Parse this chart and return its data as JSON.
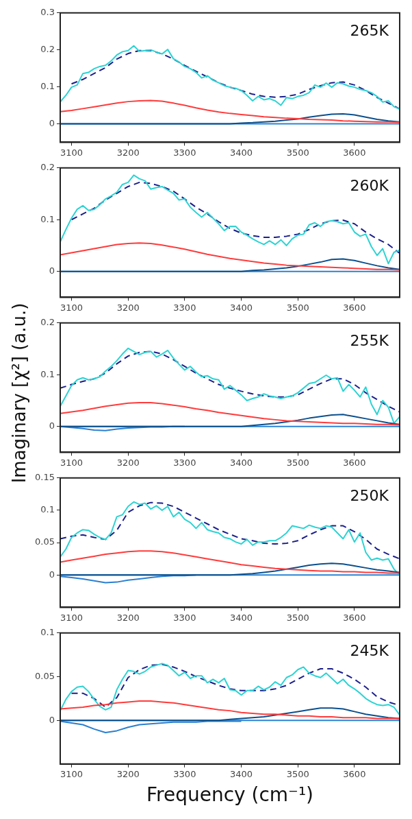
{
  "chart_data": [
    {
      "type": "line",
      "annotations": [
        "265K"
      ],
      "x": [
        3080,
        3100,
        3120,
        3140,
        3160,
        3180,
        3200,
        3220,
        3240,
        3260,
        3280,
        3300,
        3320,
        3340,
        3360,
        3380,
        3400,
        3420,
        3440,
        3460,
        3480,
        3500,
        3520,
        3540,
        3560,
        3580,
        3600,
        3620,
        3640,
        3660,
        3680
      ],
      "xlim": [
        3080,
        3680
      ],
      "xticks": [
        3100,
        3200,
        3300,
        3400,
        3500,
        3600
      ],
      "ylim": [
        -0.05,
        0.3
      ],
      "yticks": [
        0,
        0.1,
        0.2,
        0.3
      ],
      "marker": "none",
      "ref_lines": [
        {
          "axis": "y",
          "value": 0,
          "color": "#2a84d6"
        }
      ],
      "series": [
        {
          "color": "#ff3b3b",
          "values": [
            0.033,
            0.036,
            0.041,
            0.046,
            0.051,
            0.056,
            0.06,
            0.062,
            0.063,
            0.061,
            0.056,
            0.05,
            0.043,
            0.037,
            0.032,
            0.028,
            0.025,
            0.022,
            0.019,
            0.017,
            0.015,
            0.014,
            0.012,
            0.011,
            0.01,
            0.008,
            0.007,
            0.006,
            0.005,
            0.005,
            0.004
          ]
        },
        {
          "color": "#0b4f8c",
          "values": [
            0,
            0,
            0,
            0,
            0,
            0,
            0,
            0,
            0,
            0,
            0,
            0,
            0,
            0,
            0,
            0,
            0.002,
            0.003,
            0.005,
            0.007,
            0.01,
            0.013,
            0.018,
            0.022,
            0.026,
            0.027,
            0.024,
            0.018,
            0.012,
            0.008,
            0.005
          ]
        },
        {
          "color": "#2cd3d3",
          "x": [
            3080,
            3090,
            3100,
            3110,
            3120,
            3130,
            3140,
            3150,
            3160,
            3170,
            3180,
            3190,
            3200,
            3210,
            3220,
            3230,
            3240,
            3250,
            3260,
            3270,
            3280,
            3290,
            3300,
            3310,
            3320,
            3330,
            3340,
            3350,
            3360,
            3370,
            3380,
            3390,
            3400,
            3410,
            3420,
            3430,
            3440,
            3450,
            3460,
            3470,
            3480,
            3490,
            3500,
            3510,
            3520,
            3530,
            3540,
            3550,
            3560,
            3570,
            3580,
            3590,
            3600,
            3610,
            3620,
            3630,
            3640,
            3650,
            3660,
            3670,
            3680
          ],
          "values": [
            0.059,
            0.077,
            0.099,
            0.105,
            0.136,
            0.139,
            0.149,
            0.155,
            0.158,
            0.17,
            0.186,
            0.195,
            0.198,
            0.211,
            0.196,
            0.198,
            0.2,
            0.194,
            0.189,
            0.201,
            0.176,
            0.167,
            0.155,
            0.149,
            0.139,
            0.124,
            0.13,
            0.118,
            0.111,
            0.103,
            0.099,
            0.096,
            0.09,
            0.077,
            0.062,
            0.074,
            0.065,
            0.068,
            0.062,
            0.05,
            0.071,
            0.068,
            0.074,
            0.077,
            0.084,
            0.105,
            0.099,
            0.11,
            0.099,
            0.111,
            0.108,
            0.102,
            0.099,
            0.093,
            0.09,
            0.084,
            0.074,
            0.059,
            0.062,
            0.046,
            0.04
          ]
        },
        {
          "color": "#1b1f8a",
          "line_style": "dashed",
          "values": [
            null,
            0.108,
            0.12,
            0.136,
            0.152,
            0.175,
            0.19,
            0.198,
            0.198,
            0.189,
            0.175,
            0.158,
            0.142,
            0.127,
            0.111,
            0.099,
            0.09,
            0.08,
            0.074,
            0.072,
            0.074,
            0.08,
            0.093,
            0.103,
            0.111,
            0.113,
            0.105,
            0.09,
            0.071,
            0.056,
            0.04
          ]
        }
      ]
    },
    {
      "type": "line",
      "annotations": [
        "260K"
      ],
      "x": [
        3080,
        3100,
        3120,
        3140,
        3160,
        3180,
        3200,
        3220,
        3240,
        3260,
        3280,
        3300,
        3320,
        3340,
        3360,
        3380,
        3400,
        3420,
        3440,
        3460,
        3480,
        3500,
        3520,
        3540,
        3560,
        3580,
        3600,
        3620,
        3640,
        3660,
        3680
      ],
      "xlim": [
        3080,
        3680
      ],
      "xticks": [
        3100,
        3200,
        3300,
        3400,
        3500,
        3600
      ],
      "ylim": [
        -0.05,
        0.2
      ],
      "yticks": [
        0,
        0.1,
        0.2
      ],
      "marker": "none",
      "ref_lines": [
        {
          "axis": "y",
          "value": 0,
          "color": "#2a84d6"
        }
      ],
      "series": [
        {
          "color": "#ff3b3b",
          "values": [
            0.032,
            0.036,
            0.04,
            0.044,
            0.048,
            0.052,
            0.054,
            0.055,
            0.054,
            0.051,
            0.047,
            0.043,
            0.038,
            0.033,
            0.029,
            0.025,
            0.022,
            0.019,
            0.016,
            0.014,
            0.012,
            0.011,
            0.01,
            0.009,
            0.008,
            0.007,
            0.006,
            0.005,
            0.004,
            0.004,
            0.003
          ]
        },
        {
          "color": "#0b4f8c",
          "values": [
            0,
            0,
            0,
            0,
            0,
            0,
            0,
            0,
            0,
            0,
            0,
            0,
            0,
            0,
            0,
            0,
            0,
            0.002,
            0.003,
            0.005,
            0.007,
            0.01,
            0.014,
            0.018,
            0.023,
            0.024,
            0.021,
            0.016,
            0.011,
            0.007,
            0.004
          ]
        },
        {
          "color": "#2cd3d3",
          "x": [
            3080,
            3090,
            3100,
            3110,
            3120,
            3130,
            3140,
            3150,
            3160,
            3170,
            3180,
            3190,
            3200,
            3210,
            3220,
            3230,
            3240,
            3250,
            3260,
            3270,
            3280,
            3290,
            3300,
            3310,
            3320,
            3330,
            3340,
            3350,
            3360,
            3370,
            3380,
            3390,
            3400,
            3410,
            3420,
            3430,
            3440,
            3450,
            3460,
            3470,
            3480,
            3490,
            3500,
            3510,
            3520,
            3530,
            3540,
            3550,
            3560,
            3570,
            3580,
            3590,
            3600,
            3610,
            3620,
            3630,
            3640,
            3650,
            3660,
            3670,
            3680
          ],
          "values": [
            0.057,
            0.081,
            0.103,
            0.12,
            0.127,
            0.118,
            0.12,
            0.129,
            0.14,
            0.146,
            0.153,
            0.168,
            0.172,
            0.186,
            0.179,
            0.175,
            0.159,
            0.162,
            0.164,
            0.157,
            0.151,
            0.138,
            0.14,
            0.124,
            0.114,
            0.105,
            0.114,
            0.103,
            0.092,
            0.079,
            0.087,
            0.087,
            0.076,
            0.07,
            0.063,
            0.057,
            0.052,
            0.059,
            0.052,
            0.061,
            0.05,
            0.063,
            0.07,
            0.072,
            0.09,
            0.094,
            0.087,
            0.096,
            0.098,
            0.096,
            0.092,
            0.094,
            0.076,
            0.068,
            0.072,
            0.048,
            0.031,
            0.044,
            0.015,
            0.037,
            0.041
          ]
        },
        {
          "color": "#1b1f8a",
          "line_style": "dashed",
          "values": [
            null,
            0.1,
            0.111,
            0.122,
            0.138,
            0.151,
            0.164,
            0.172,
            0.17,
            0.164,
            0.155,
            0.14,
            0.124,
            0.111,
            0.096,
            0.083,
            0.074,
            0.069,
            0.066,
            0.066,
            0.068,
            0.072,
            0.081,
            0.092,
            0.098,
            0.099,
            0.092,
            0.076,
            0.063,
            0.052,
            0.035
          ]
        }
      ]
    },
    {
      "type": "line",
      "annotations": [
        "255K"
      ],
      "ylabel": "Imaginary [χ²] (a.u.)",
      "x": [
        3080,
        3100,
        3120,
        3140,
        3160,
        3180,
        3200,
        3220,
        3240,
        3260,
        3280,
        3300,
        3320,
        3340,
        3360,
        3380,
        3400,
        3420,
        3440,
        3460,
        3480,
        3500,
        3520,
        3540,
        3560,
        3580,
        3600,
        3620,
        3640,
        3660,
        3680
      ],
      "xlim": [
        3080,
        3680
      ],
      "xticks": [
        3100,
        3200,
        3300,
        3400,
        3500,
        3600
      ],
      "ylim": [
        -0.05,
        0.2
      ],
      "yticks": [
        0,
        0.1,
        0.2
      ],
      "marker": "none",
      "ref_lines": [
        {
          "axis": "y",
          "value": 0,
          "color": "#2a84d6"
        }
      ],
      "series": [
        {
          "color": "#ff3b3b",
          "values": [
            0.025,
            0.028,
            0.031,
            0.035,
            0.039,
            0.042,
            0.045,
            0.046,
            0.046,
            0.044,
            0.041,
            0.038,
            0.034,
            0.031,
            0.027,
            0.024,
            0.021,
            0.018,
            0.015,
            0.013,
            0.011,
            0.01,
            0.009,
            0.008,
            0.007,
            0.006,
            0.006,
            0.005,
            0.004,
            0.004,
            0.003
          ]
        },
        {
          "color": "#0b4f8c",
          "values": [
            0,
            0,
            0,
            0,
            0,
            0,
            0,
            0,
            0,
            0,
            0,
            0,
            0,
            0,
            0,
            0,
            0,
            0.002,
            0.004,
            0.006,
            0.009,
            0.012,
            0.016,
            0.019,
            0.022,
            0.023,
            0.019,
            0.015,
            0.011,
            0.007,
            0.004
          ]
        },
        {
          "color": "#2a7fd0",
          "x": [
            3080,
            3100,
            3120,
            3140,
            3160,
            3180,
            3200,
            3220,
            3240,
            3260,
            3280,
            3300
          ],
          "values": [
            0,
            -0.002,
            -0.004,
            -0.007,
            -0.008,
            -0.005,
            -0.003,
            -0.002,
            -0.001,
            -0.001,
            0,
            0
          ]
        },
        {
          "color": "#2cd3d3",
          "x": [
            3080,
            3090,
            3100,
            3110,
            3120,
            3130,
            3140,
            3150,
            3160,
            3170,
            3180,
            3190,
            3200,
            3210,
            3220,
            3230,
            3240,
            3250,
            3260,
            3270,
            3280,
            3290,
            3300,
            3310,
            3320,
            3330,
            3340,
            3350,
            3360,
            3370,
            3380,
            3390,
            3400,
            3410,
            3420,
            3430,
            3440,
            3450,
            3460,
            3470,
            3480,
            3490,
            3500,
            3510,
            3520,
            3530,
            3540,
            3550,
            3560,
            3570,
            3580,
            3590,
            3600,
            3610,
            3620,
            3630,
            3640,
            3650,
            3660,
            3670,
            3680
          ],
          "values": [
            0.039,
            0.059,
            0.079,
            0.09,
            0.094,
            0.09,
            0.092,
            0.096,
            0.107,
            0.116,
            0.127,
            0.14,
            0.151,
            0.145,
            0.139,
            0.143,
            0.145,
            0.134,
            0.14,
            0.147,
            0.132,
            0.12,
            0.109,
            0.116,
            0.105,
            0.096,
            0.098,
            0.092,
            0.09,
            0.072,
            0.079,
            0.07,
            0.061,
            0.05,
            0.054,
            0.057,
            0.063,
            0.059,
            0.057,
            0.054,
            0.057,
            0.059,
            0.065,
            0.074,
            0.083,
            0.085,
            0.092,
            0.099,
            0.092,
            0.094,
            0.068,
            0.081,
            0.07,
            0.057,
            0.076,
            0.043,
            0.023,
            0.05,
            0.037,
            0.006,
            0.019
          ]
        },
        {
          "color": "#1b1f8a",
          "line_style": "dashed",
          "values": [
            0.074,
            0.081,
            0.087,
            0.092,
            0.103,
            0.121,
            0.136,
            0.143,
            0.145,
            0.14,
            0.129,
            0.116,
            0.103,
            0.092,
            0.081,
            0.074,
            0.068,
            0.063,
            0.059,
            0.057,
            0.057,
            0.061,
            0.072,
            0.083,
            0.092,
            0.092,
            0.081,
            0.065,
            0.052,
            0.039,
            0.028
          ]
        }
      ]
    },
    {
      "type": "line",
      "annotations": [
        "250K"
      ],
      "x": [
        3080,
        3100,
        3120,
        3140,
        3160,
        3180,
        3200,
        3220,
        3240,
        3260,
        3280,
        3300,
        3320,
        3340,
        3360,
        3380,
        3400,
        3420,
        3440,
        3460,
        3480,
        3500,
        3520,
        3540,
        3560,
        3580,
        3600,
        3620,
        3640,
        3660,
        3680
      ],
      "xlim": [
        3080,
        3680
      ],
      "xticks": [
        3100,
        3200,
        3300,
        3400,
        3500,
        3600
      ],
      "ylim": [
        -0.05,
        0.15
      ],
      "yticks": [
        0,
        0.05,
        0.1,
        0.15
      ],
      "marker": "none",
      "ref_lines": [
        {
          "axis": "y",
          "value": 0,
          "color": "#2a84d6"
        }
      ],
      "series": [
        {
          "color": "#ff3b3b",
          "values": [
            0.02,
            0.023,
            0.026,
            0.029,
            0.032,
            0.034,
            0.036,
            0.037,
            0.037,
            0.036,
            0.034,
            0.031,
            0.028,
            0.025,
            0.022,
            0.019,
            0.016,
            0.014,
            0.012,
            0.01,
            0.009,
            0.008,
            0.007,
            0.006,
            0.006,
            0.005,
            0.005,
            0.004,
            0.004,
            0.003,
            0.003
          ]
        },
        {
          "color": "#0b4f8c",
          "values": [
            0,
            0,
            0,
            0,
            0,
            0,
            0,
            0,
            0,
            0,
            0,
            0,
            0,
            0,
            0,
            0,
            0.001,
            0.002,
            0.004,
            0.006,
            0.009,
            0.012,
            0.015,
            0.017,
            0.018,
            0.017,
            0.014,
            0.011,
            0.008,
            0.006,
            0.004
          ]
        },
        {
          "color": "#2a7fd0",
          "x": [
            3080,
            3100,
            3120,
            3140,
            3160,
            3180,
            3200,
            3220,
            3240,
            3260,
            3280,
            3300,
            3320
          ],
          "values": [
            -0.002,
            -0.004,
            -0.006,
            -0.009,
            -0.012,
            -0.011,
            -0.008,
            -0.006,
            -0.004,
            -0.002,
            -0.001,
            -0.001,
            0
          ]
        },
        {
          "color": "#2cd3d3",
          "x": [
            3080,
            3090,
            3100,
            3110,
            3120,
            3130,
            3140,
            3150,
            3160,
            3170,
            3180,
            3190,
            3200,
            3210,
            3220,
            3230,
            3240,
            3250,
            3260,
            3270,
            3280,
            3290,
            3300,
            3310,
            3320,
            3330,
            3340,
            3350,
            3360,
            3370,
            3380,
            3390,
            3400,
            3410,
            3420,
            3430,
            3440,
            3450,
            3460,
            3470,
            3480,
            3490,
            3500,
            3510,
            3520,
            3530,
            3540,
            3550,
            3560,
            3570,
            3580,
            3590,
            3600,
            3610,
            3620,
            3630,
            3640,
            3650,
            3660,
            3670,
            3680
          ],
          "values": [
            0.028,
            0.04,
            0.058,
            0.065,
            0.07,
            0.069,
            0.063,
            0.058,
            0.055,
            0.065,
            0.09,
            0.093,
            0.106,
            0.113,
            0.109,
            0.111,
            0.102,
            0.107,
            0.1,
            0.106,
            0.09,
            0.097,
            0.086,
            0.081,
            0.072,
            0.081,
            0.07,
            0.067,
            0.065,
            0.058,
            0.056,
            0.051,
            0.048,
            0.055,
            0.046,
            0.051,
            0.051,
            0.053,
            0.053,
            0.058,
            0.065,
            0.076,
            0.074,
            0.072,
            0.077,
            0.074,
            0.072,
            0.076,
            0.074,
            0.065,
            0.056,
            0.07,
            0.051,
            0.065,
            0.035,
            0.023,
            0.026,
            0.023,
            0.025,
            0.009,
            0
          ]
        },
        {
          "color": "#1b1f8a",
          "line_style": "dashed",
          "values": [
            0.056,
            0.06,
            0.062,
            0.058,
            0.055,
            0.069,
            0.097,
            0.107,
            0.112,
            0.111,
            0.106,
            0.097,
            0.088,
            0.079,
            0.07,
            0.063,
            0.056,
            0.053,
            0.049,
            0.048,
            0.049,
            0.053,
            0.062,
            0.07,
            0.076,
            0.076,
            0.067,
            0.055,
            0.04,
            0.032,
            0.025
          ]
        }
      ]
    },
    {
      "type": "line",
      "annotations": [
        "245K"
      ],
      "xlabel": "Frequency (cm⁻¹)",
      "x": [
        3080,
        3100,
        3120,
        3140,
        3160,
        3180,
        3200,
        3220,
        3240,
        3260,
        3280,
        3300,
        3320,
        3340,
        3360,
        3380,
        3400,
        3420,
        3440,
        3460,
        3480,
        3500,
        3520,
        3540,
        3560,
        3580,
        3600,
        3620,
        3640,
        3660,
        3680
      ],
      "xlim": [
        3080,
        3680
      ],
      "xticks": [
        3100,
        3200,
        3300,
        3400,
        3500,
        3600
      ],
      "ylim": [
        -0.05,
        0.1
      ],
      "yticks": [
        0,
        0.05,
        0.1
      ],
      "marker": "none",
      "ref_lines": [
        {
          "axis": "y",
          "value": 0,
          "color": "#2a84d6"
        }
      ],
      "series": [
        {
          "color": "#ff3b3b",
          "values": [
            0.013,
            0.014,
            0.015,
            0.017,
            0.018,
            0.02,
            0.021,
            0.022,
            0.022,
            0.021,
            0.02,
            0.018,
            0.016,
            0.014,
            0.012,
            0.011,
            0.009,
            0.008,
            0.007,
            0.007,
            0.006,
            0.005,
            0.005,
            0.004,
            0.004,
            0.003,
            0.003,
            0.003,
            0.002,
            0.002,
            0.002
          ]
        },
        {
          "color": "#0b4f8c",
          "values": [
            0,
            0,
            0,
            0,
            0,
            0,
            0,
            0,
            0,
            0,
            0,
            0,
            0,
            0,
            0,
            0.001,
            0.002,
            0.003,
            0.004,
            0.006,
            0.008,
            0.01,
            0.012,
            0.014,
            0.014,
            0.013,
            0.01,
            0.007,
            0.005,
            0.003,
            0.002
          ]
        },
        {
          "color": "#2a7fd0",
          "x": [
            3080,
            3100,
            3120,
            3140,
            3160,
            3180,
            3200,
            3220,
            3240,
            3260,
            3280,
            3300,
            3320,
            3340,
            3360,
            3380,
            3400
          ],
          "values": [
            -0.001,
            -0.003,
            -0.005,
            -0.01,
            -0.014,
            -0.012,
            -0.008,
            -0.005,
            -0.004,
            -0.003,
            -0.002,
            -0.002,
            -0.002,
            -0.001,
            -0.001,
            -0.001,
            -0.001
          ]
        },
        {
          "color": "#2cd3d3",
          "x": [
            3080,
            3090,
            3100,
            3110,
            3120,
            3130,
            3140,
            3150,
            3160,
            3170,
            3180,
            3190,
            3200,
            3210,
            3220,
            3230,
            3240,
            3250,
            3260,
            3270,
            3280,
            3290,
            3300,
            3310,
            3320,
            3330,
            3340,
            3350,
            3360,
            3370,
            3380,
            3390,
            3400,
            3410,
            3420,
            3430,
            3440,
            3450,
            3460,
            3470,
            3480,
            3490,
            3500,
            3510,
            3520,
            3530,
            3540,
            3550,
            3560,
            3570,
            3580,
            3590,
            3600,
            3610,
            3620,
            3630,
            3640,
            3650,
            3660,
            3670,
            3680
          ],
          "values": [
            0.011,
            0.024,
            0.033,
            0.038,
            0.039,
            0.033,
            0.024,
            0.016,
            0.012,
            0.015,
            0.035,
            0.047,
            0.057,
            0.056,
            0.053,
            0.056,
            0.061,
            0.063,
            0.065,
            0.063,
            0.057,
            0.051,
            0.055,
            0.048,
            0.051,
            0.051,
            0.043,
            0.047,
            0.043,
            0.048,
            0.035,
            0.034,
            0.029,
            0.034,
            0.034,
            0.039,
            0.035,
            0.038,
            0.044,
            0.04,
            0.049,
            0.052,
            0.058,
            0.061,
            0.054,
            0.051,
            0.049,
            0.054,
            0.048,
            0.042,
            0.047,
            0.04,
            0.036,
            0.031,
            0.025,
            0.021,
            0.018,
            0.017,
            0.018,
            0.015,
            0.006
          ]
        },
        {
          "color": "#1b1f8a",
          "line_style": "dashed",
          "values": [
            null,
            0.031,
            0.031,
            0.025,
            0.015,
            0.026,
            0.049,
            0.058,
            0.063,
            0.064,
            0.061,
            0.056,
            0.05,
            0.045,
            0.04,
            0.036,
            0.034,
            0.034,
            0.034,
            0.036,
            0.04,
            0.047,
            0.054,
            0.059,
            0.059,
            0.054,
            0.047,
            0.038,
            0.027,
            0.021,
            0.017
          ]
        }
      ]
    }
  ]
}
